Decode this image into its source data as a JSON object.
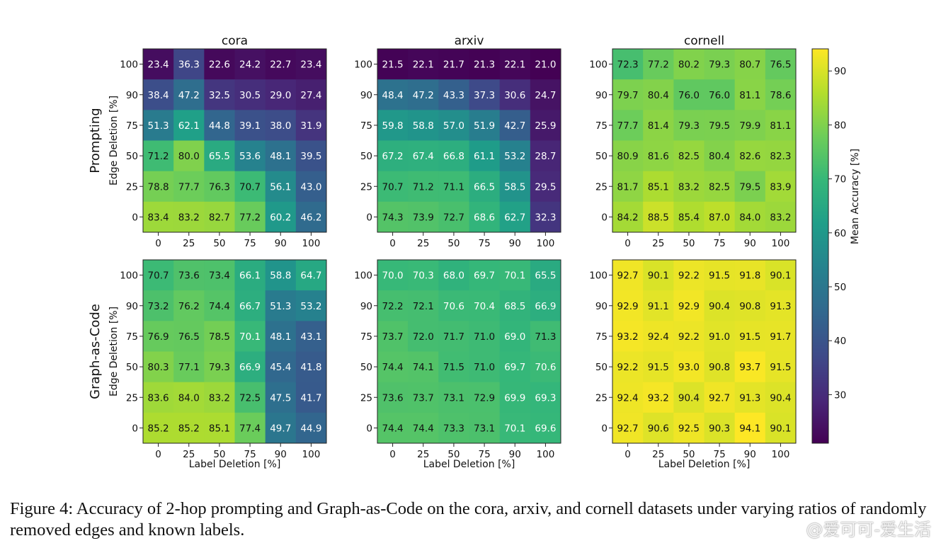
{
  "chart_data": {
    "type": "heatmap",
    "colorbar": {
      "label": "Mean Accuracy [%]",
      "ticks": [
        30,
        40,
        50,
        60,
        70,
        80,
        90
      ],
      "range": [
        21,
        94.1
      ],
      "colormap": "viridis"
    },
    "row_labels_rows": [
      "Prompting",
      "Graph-as-Code"
    ],
    "ylabel": "Edge Deletion [%]",
    "xlabel": "Label Deletion [%]",
    "x_ticks": [
      "0",
      "25",
      "50",
      "75",
      "90",
      "100"
    ],
    "y_ticks": [
      "100",
      "90",
      "75",
      "50",
      "25",
      "0"
    ],
    "panels": [
      {
        "title": "cora",
        "row": "Prompting",
        "col": 0,
        "values": [
          [
            23.4,
            36.3,
            22.6,
            24.2,
            22.7,
            23.4
          ],
          [
            38.4,
            47.2,
            32.5,
            30.5,
            29.0,
            27.4
          ],
          [
            51.3,
            62.1,
            44.8,
            39.1,
            38.0,
            31.9
          ],
          [
            71.2,
            80.0,
            65.5,
            53.6,
            48.1,
            39.5
          ],
          [
            78.8,
            77.7,
            76.3,
            70.7,
            56.1,
            43.0
          ],
          [
            83.4,
            83.2,
            82.7,
            77.2,
            60.2,
            46.2
          ]
        ]
      },
      {
        "title": "arxiv",
        "row": "Prompting",
        "col": 1,
        "values": [
          [
            21.5,
            22.1,
            21.7,
            21.3,
            22.1,
            21.0
          ],
          [
            48.4,
            47.2,
            43.3,
            37.3,
            30.6,
            24.7
          ],
          [
            59.8,
            58.8,
            57.0,
            51.9,
            42.7,
            25.9
          ],
          [
            67.2,
            67.4,
            66.8,
            61.1,
            53.2,
            28.7
          ],
          [
            70.7,
            71.2,
            71.1,
            66.5,
            58.5,
            29.5
          ],
          [
            74.3,
            73.9,
            72.7,
            68.6,
            62.7,
            32.3
          ]
        ]
      },
      {
        "title": "cornell",
        "row": "Prompting",
        "col": 2,
        "values": [
          [
            72.3,
            77.2,
            80.2,
            79.3,
            80.7,
            76.5
          ],
          [
            79.7,
            80.4,
            76.0,
            76.0,
            81.1,
            78.6
          ],
          [
            77.7,
            81.4,
            79.3,
            79.5,
            79.9,
            81.1
          ],
          [
            80.9,
            81.6,
            82.5,
            80.4,
            82.6,
            82.3
          ],
          [
            81.7,
            85.1,
            83.2,
            82.5,
            79.5,
            83.9
          ],
          [
            84.2,
            88.5,
            85.4,
            87.0,
            84.0,
            83.2
          ]
        ]
      },
      {
        "title": "",
        "row": "Graph-as-Code",
        "col": 0,
        "values": [
          [
            70.7,
            73.6,
            73.4,
            66.1,
            58.8,
            64.7
          ],
          [
            73.2,
            76.2,
            74.4,
            66.7,
            51.3,
            53.2
          ],
          [
            76.9,
            76.5,
            78.5,
            70.1,
            48.1,
            43.1
          ],
          [
            80.3,
            77.1,
            79.3,
            66.9,
            45.4,
            41.8
          ],
          [
            83.6,
            84.0,
            83.2,
            72.5,
            47.5,
            41.7
          ],
          [
            85.2,
            85.2,
            85.1,
            77.4,
            49.7,
            44.9
          ]
        ]
      },
      {
        "title": "",
        "row": "Graph-as-Code",
        "col": 1,
        "values": [
          [
            70.0,
            70.3,
            68.0,
            69.7,
            70.1,
            65.5
          ],
          [
            72.2,
            72.1,
            70.6,
            70.4,
            68.5,
            66.9
          ],
          [
            73.7,
            72.0,
            71.7,
            71.0,
            69.0,
            71.3
          ],
          [
            74.4,
            74.1,
            71.5,
            71.0,
            69.7,
            70.6
          ],
          [
            73.6,
            73.7,
            73.1,
            72.9,
            69.9,
            69.3
          ],
          [
            74.4,
            74.4,
            73.3,
            73.1,
            70.1,
            69.6
          ]
        ]
      },
      {
        "title": "",
        "row": "Graph-as-Code",
        "col": 2,
        "values": [
          [
            92.7,
            90.1,
            92.2,
            91.5,
            91.8,
            90.1
          ],
          [
            92.9,
            91.1,
            92.9,
            90.4,
            90.8,
            91.3
          ],
          [
            93.2,
            92.4,
            92.2,
            91.0,
            91.5,
            91.7
          ],
          [
            92.2,
            91.5,
            93.0,
            90.8,
            93.7,
            91.5
          ],
          [
            92.4,
            93.2,
            90.4,
            92.7,
            91.3,
            90.4
          ],
          [
            92.7,
            90.6,
            92.5,
            90.3,
            94.1,
            90.1
          ]
        ]
      }
    ]
  },
  "caption": "Figure 4: Accuracy of 2-hop prompting and Graph-as-Code on the cora, arxiv, and cornell datasets under varying ratios of randomly removed edges and known labels.",
  "watermark": "@爱可可-爱生活"
}
